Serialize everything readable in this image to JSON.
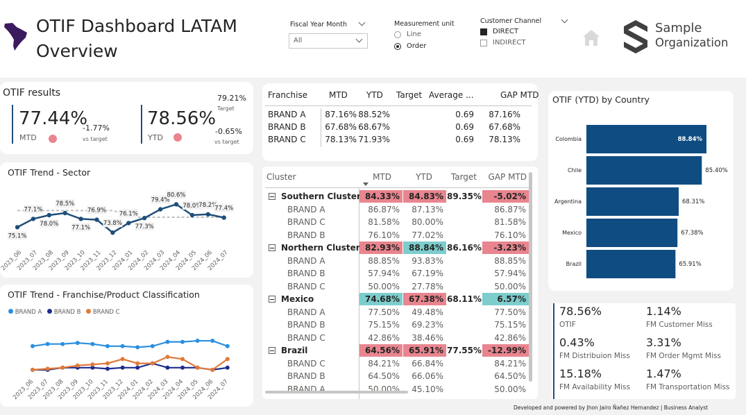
{
  "header": {
    "title_line1": "OTIF Dashboard LATAM",
    "title_line2": "Overview",
    "fiscal_title": "Fiscal Year Month",
    "fiscal_value": "All",
    "measure_title": "Measurement unit",
    "measure_options": [
      "Line",
      "Order"
    ],
    "measure_selected": "Order",
    "channel_title": "Customer Channel",
    "channel_options": [
      "DIRECT",
      "INDIRECT"
    ],
    "channel_selected": "DIRECT",
    "org_line1": "Sample",
    "org_line2": "Organization"
  },
  "otif_results": {
    "title": "OTIF results",
    "mtd_value": "77.44%",
    "mtd_label": "MTD",
    "mtd_delta": "-1.77%",
    "mtd_delta_label": "vs target",
    "ytd_value": "78.56%",
    "ytd_label": "YTD",
    "target_value": "79.21%",
    "target_label": "Target",
    "ytd_delta": "-0.65%",
    "ytd_delta_label": "vs target",
    "status_color": "#e8858f"
  },
  "sector_trend": {
    "title": "OTIF Trend - Sector",
    "chart_data": {
      "type": "line",
      "x": [
        "2023_06",
        "2023_07",
        "2023_08",
        "2023_09",
        "2023_10",
        "2023_11",
        "2023_12",
        "2024_01",
        "2024_02",
        "2024_03",
        "2024_04",
        "2024_05",
        "2024_06",
        "2024_07"
      ],
      "series": [
        {
          "values": [
            75.1,
            77.1,
            78.0,
            78.5,
            77.1,
            76.9,
            73.8,
            76.1,
            77.3,
            79.4,
            80.6,
            78.0,
            78.2,
            77.4
          ],
          "color": "#1f4e79"
        }
      ],
      "labels": [
        "75.1%",
        "77.1%",
        "78.0%",
        "78.5%",
        "77.1%",
        "76.9%",
        "73.8%",
        "76.1%",
        "77.3%",
        "79.4%",
        "80.6%",
        "78.0%",
        "78.2%",
        "77.4%"
      ],
      "target_color": "#bfbfbf"
    }
  },
  "franchise_trend": {
    "title": "OTIF Trend - Franchise/Product Classification",
    "legend": [
      {
        "name": "BRAND A",
        "color": "#2b8fe0"
      },
      {
        "name": "BRAND B",
        "color": "#1f2d8c"
      },
      {
        "name": "BRAND C",
        "color": "#e07a3a"
      }
    ],
    "chart_data": {
      "type": "line",
      "x": [
        "2023_06",
        "2023_07",
        "2023_08",
        "2023_09",
        "2023_10",
        "2023_11",
        "2023_12",
        "2024_01",
        "2024_02",
        "2024_03",
        "2024_04",
        "2024_05",
        "2024_06",
        "2024_07"
      ],
      "series": [
        {
          "name": "BRAND A",
          "values": [
            86,
            87,
            87,
            87.5,
            87,
            86,
            86,
            85.5,
            86,
            88,
            88,
            88.5,
            88.5,
            86
          ]
        },
        {
          "name": "BRAND B",
          "values": [
            75,
            75,
            76,
            76,
            76,
            75.5,
            76,
            76,
            78,
            76,
            76,
            76,
            75,
            76
          ]
        },
        {
          "name": "BRAND C",
          "values": [
            75,
            75.5,
            76,
            77,
            77.5,
            78,
            80,
            78,
            78,
            81,
            80,
            76,
            75,
            80
          ]
        }
      ]
    }
  },
  "franchise_table": {
    "headers": [
      "Franchise",
      "MTD",
      "YTD",
      "Target",
      "Average ...",
      "GAP MTD"
    ],
    "rows": [
      {
        "name": "BRAND A",
        "mtd": "87.16%",
        "ytd": "88.52%",
        "target": "",
        "avg": "0.69",
        "gap": "87.16%"
      },
      {
        "name": "BRAND B",
        "mtd": "67.68%",
        "ytd": "68.67%",
        "target": "",
        "avg": "0.69",
        "gap": "67.68%"
      },
      {
        "name": "BRAND C",
        "mtd": "78.13%",
        "ytd": "71.93%",
        "target": "",
        "avg": "0.69",
        "gap": "78.13%"
      }
    ]
  },
  "cluster_table": {
    "headers": [
      "Cluster",
      "MTD",
      "YTD",
      "Target",
      "GAP MTD"
    ],
    "rows": [
      {
        "name": "Southern Cluster",
        "group": true,
        "mtd": "84.33%",
        "ytd": "84.83%",
        "target": "89.35%",
        "gap": "-5.02%",
        "mtd_bg": "red",
        "ytd_bg": "red",
        "gap_bg": "red"
      },
      {
        "name": "BRAND A",
        "mtd": "86.87%",
        "ytd": "87.13%",
        "target": "",
        "gap": "86.87%"
      },
      {
        "name": "BRAND C",
        "mtd": "81.58%",
        "ytd": "80.00%",
        "target": "",
        "gap": "81.58%"
      },
      {
        "name": "BRAND B",
        "mtd": "76.10%",
        "ytd": "77.02%",
        "target": "",
        "gap": "76.10%"
      },
      {
        "name": "Northern Cluster",
        "group": true,
        "mtd": "82.93%",
        "ytd": "88.84%",
        "target": "86.16%",
        "gap": "-3.23%",
        "mtd_bg": "red",
        "ytd_bg": "teal",
        "gap_bg": "red"
      },
      {
        "name": "BRAND A",
        "mtd": "88.85%",
        "ytd": "93.83%",
        "target": "",
        "gap": "88.85%"
      },
      {
        "name": "BRAND B",
        "mtd": "57.94%",
        "ytd": "67.19%",
        "target": "",
        "gap": "57.94%"
      },
      {
        "name": "BRAND C",
        "mtd": "50.00%",
        "ytd": "27.78%",
        "target": "",
        "gap": "50.00%"
      },
      {
        "name": "Mexico",
        "group": true,
        "mtd": "74.68%",
        "ytd": "67.38%",
        "target": "68.11%",
        "gap": "6.57%",
        "mtd_bg": "teal",
        "ytd_bg": "red",
        "gap_bg": "teal"
      },
      {
        "name": "BRAND A",
        "mtd": "77.50%",
        "ytd": "49.48%",
        "target": "",
        "gap": "77.50%"
      },
      {
        "name": "BRAND B",
        "mtd": "75.15%",
        "ytd": "69.23%",
        "target": "",
        "gap": "75.15%"
      },
      {
        "name": "BRAND C",
        "mtd": "42.86%",
        "ytd": "38.46%",
        "target": "",
        "gap": "42.86%"
      },
      {
        "name": "Brazil",
        "group": true,
        "mtd": "64.56%",
        "ytd": "65.91%",
        "target": "77.55%",
        "gap": "-12.99%",
        "mtd_bg": "red",
        "ytd_bg": "red",
        "gap_bg": "red"
      },
      {
        "name": "BRAND C",
        "mtd": "84.21%",
        "ytd": "66.84%",
        "target": "",
        "gap": "84.21%"
      },
      {
        "name": "BRAND B",
        "mtd": "64.50%",
        "ytd": "66.06%",
        "target": "",
        "gap": "64.50%"
      },
      {
        "name": "BRAND A",
        "mtd": "50.00%",
        "ytd": "45.10%",
        "target": "",
        "gap": "50.00%"
      }
    ]
  },
  "country_chart": {
    "title": "OTIF (YTD) by Country",
    "chart_data": {
      "type": "bar",
      "orientation": "horizontal",
      "categories": [
        "Colombia",
        "Chile",
        "Argentina",
        "Mexico",
        "Brazil"
      ],
      "values": [
        88.84,
        85.4,
        68.31,
        67.38,
        65.91
      ],
      "labels": [
        "88.84%",
        "85.40%",
        "68.31%",
        "67.38%",
        "65.91%"
      ],
      "color": "#0f4c81"
    }
  },
  "kpis": [
    {
      "value": "78.56%",
      "label": "OTIF"
    },
    {
      "value": "1.14%",
      "label": "FM Customer Miss"
    },
    {
      "value": "0.43%",
      "label": "FM Distribuion Miss"
    },
    {
      "value": "3.31%",
      "label": "FM Order Mgmt Miss"
    },
    {
      "value": "15.18%",
      "label": "FM Availability Miss"
    },
    {
      "value": "1.47%",
      "label": "FM Transportation Miss"
    }
  ],
  "footer": "Developed  and powered by Jhon Jairo Ñañez Hernandez | Business Analyst"
}
